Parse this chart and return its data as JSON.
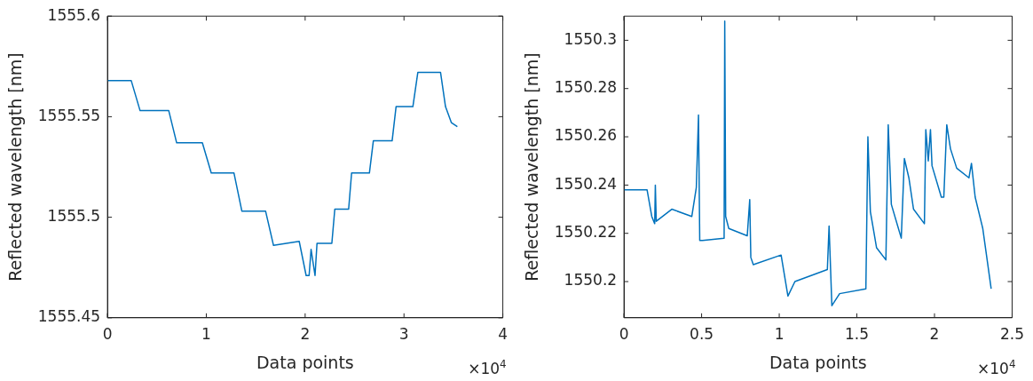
{
  "chart_data": [
    {
      "type": "line",
      "xlabel": "Data points",
      "ylabel": "Reflected wavelength [nm]",
      "annotations": [
        "×10$^{4}$"
      ],
      "xlim": [
        0,
        4
      ],
      "xticks": [
        0,
        1,
        2,
        3,
        4
      ],
      "ylim": [
        1555.45,
        1555.6
      ],
      "yticks": [
        1555.45,
        1555.5,
        1555.55,
        1555.6
      ],
      "series": [
        {
          "color": "#0072bd",
          "x": [
            0,
            0.24,
            0.33,
            0.62,
            0.7,
            0.96,
            1.05,
            1.28,
            1.36,
            1.6,
            1.68,
            1.94,
            2.01,
            2.04,
            2.06,
            2.1,
            2.12,
            2.27,
            2.3,
            2.44,
            2.47,
            2.65,
            2.69,
            2.88,
            2.92,
            3.09,
            3.14,
            3.37,
            3.42,
            3.48,
            3.54
          ],
          "values": [
            1555.568,
            1555.568,
            1555.553,
            1555.553,
            1555.537,
            1555.537,
            1555.522,
            1555.522,
            1555.503,
            1555.503,
            1555.486,
            1555.488,
            1555.471,
            1555.471,
            1555.484,
            1555.471,
            1555.487,
            1555.487,
            1555.504,
            1555.504,
            1555.522,
            1555.522,
            1555.538,
            1555.538,
            1555.555,
            1555.555,
            1555.572,
            1555.572,
            1555.555,
            1555.547,
            1555.545
          ]
        }
      ]
    },
    {
      "type": "line",
      "xlabel": "Data points",
      "ylabel": "Reflected wavelength [nm]",
      "annotations": [
        "×10$^{4}$"
      ],
      "xlim": [
        0,
        2.5
      ],
      "xticks": [
        0,
        0.5,
        1,
        1.5,
        2,
        2.5
      ],
      "ylim": [
        1550.185,
        1550.31
      ],
      "yticks": [
        1550.2,
        1550.22,
        1550.24,
        1550.26,
        1550.28,
        1550.3
      ],
      "series": [
        {
          "color": "#0072bd",
          "x": [
            0,
            0.149,
            0.179,
            0.198,
            0.202,
            0.208,
            0.308,
            0.437,
            0.466,
            0.48,
            0.488,
            0.506,
            0.645,
            0.649,
            0.655,
            0.675,
            0.794,
            0.81,
            0.817,
            0.833,
            1.012,
            1.056,
            1.101,
            1.31,
            1.321,
            1.339,
            1.389,
            1.558,
            1.571,
            1.587,
            1.627,
            1.687,
            1.702,
            1.722,
            1.786,
            1.806,
            1.835,
            1.865,
            1.935,
            1.944,
            1.96,
            1.974,
            1.984,
            2.044,
            2.06,
            2.079,
            2.103,
            2.143,
            2.222,
            2.238,
            2.262,
            2.311,
            2.365
          ],
          "values": [
            1550.238,
            1550.238,
            1550.227,
            1550.224,
            1550.24,
            1550.225,
            1550.23,
            1550.227,
            1550.239,
            1550.269,
            1550.217,
            1550.217,
            1550.218,
            1550.308,
            1550.227,
            1550.222,
            1550.219,
            1550.234,
            1550.21,
            1550.207,
            1550.211,
            1550.194,
            1550.2,
            1550.205,
            1550.223,
            1550.19,
            1550.195,
            1550.197,
            1550.26,
            1550.229,
            1550.214,
            1550.209,
            1550.265,
            1550.232,
            1550.218,
            1550.251,
            1550.243,
            1550.23,
            1550.224,
            1550.263,
            1550.25,
            1550.263,
            1550.248,
            1550.235,
            1550.235,
            1550.265,
            1550.255,
            1550.247,
            1550.243,
            1550.249,
            1550.235,
            1550.222,
            1550.197
          ]
        }
      ]
    }
  ]
}
